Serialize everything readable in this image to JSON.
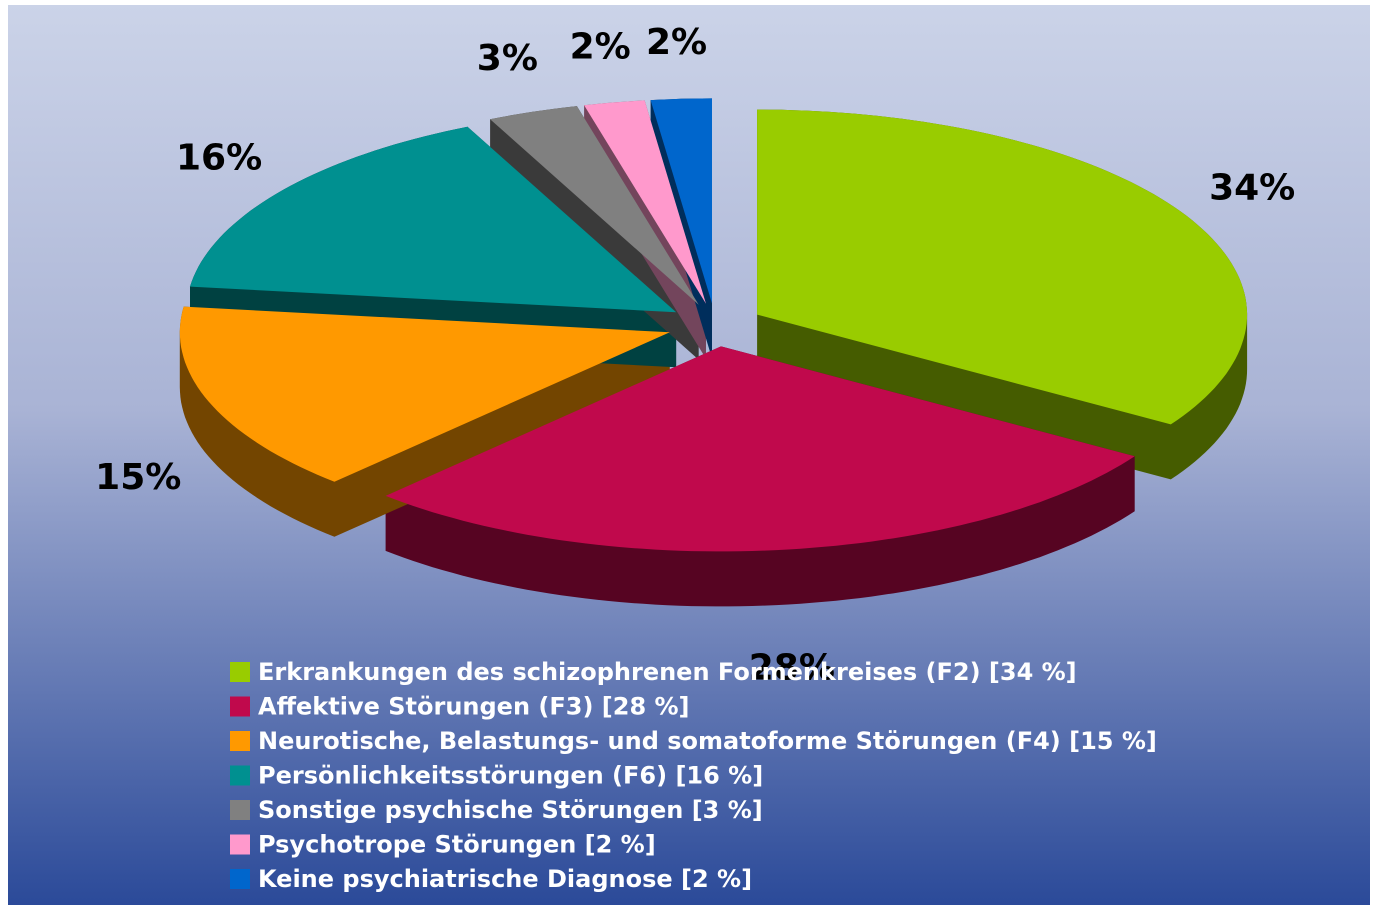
{
  "chart_data": {
    "type": "pie",
    "categories": [
      "Erkrankungen des schizophrenen Formenkreises (F2) [34 %]",
      "Affektive Störungen (F3) [28 %]",
      "Neurotische, Belastungs- und somatoforme Störungen (F4) [15 %]",
      "Persönlichkeitsstörungen (F6) [16 %]",
      "Sonstige psychische Störungen [3 %]",
      "Psychotrope Störungen [2 %]",
      "Keine psychiatrische Diagnose [2 %]"
    ],
    "values": [
      34,
      28,
      15,
      16,
      3,
      2,
      2
    ],
    "value_labels": [
      "34%",
      "28%",
      "15%",
      "16%",
      "3%",
      "2%",
      "2%"
    ],
    "colors": [
      "#99cc00",
      "#c0094c",
      "#ff9900",
      "#009090",
      "#808080",
      "#ff99cc",
      "#0066cc"
    ],
    "legend": "bottom"
  }
}
